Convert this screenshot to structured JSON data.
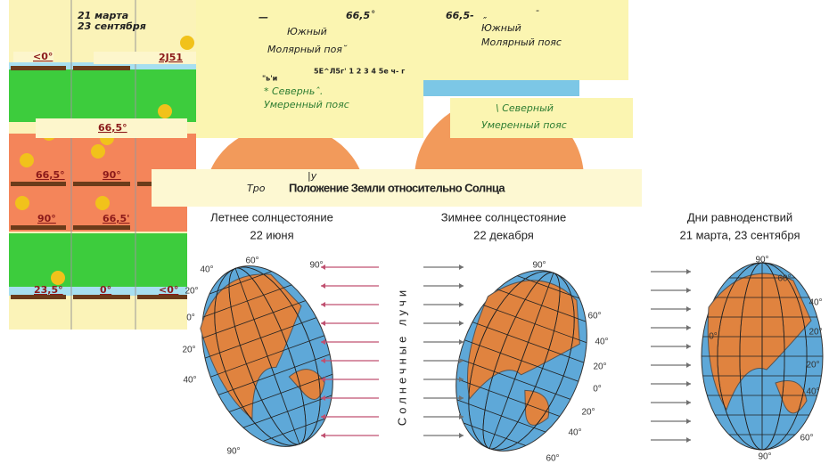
{
  "left_panel": {
    "date_line1": "21 марта",
    "date_line2": "23 сентября",
    "labels": [
      "<0°",
      "2J51",
      "66,5°",
      "66,5°",
      "90°",
      "90°",
      "66,5'",
      "23,5°",
      "0°",
      "<0°"
    ]
  },
  "box1": {
    "dash": "—",
    "angle": "66,5˚",
    "south": "Южный",
    "polar": "Молярный поя˘",
    "noise1": "5Е^Л5г' 1 2 3 4 5е ч- г",
    "noise2": "\"ь'и",
    "north": "* Северньˆ.",
    "temperate": "Умеренный пояс"
  },
  "box2": {
    "angle": "66,5-",
    "mark1": "″",
    "mark2": "-",
    "south": "Южный",
    "polar": "Молярный пояс"
  },
  "box3": {
    "north": "\\ Северный",
    "temperate": "Умеренный пояс"
  },
  "fragments": {
    "bar": "|у",
    "tropic": "Тро"
  },
  "figure": {
    "title": "Положение Земли относительно Солнца",
    "rays_label": "Солнечные лучи",
    "columns": [
      {
        "heading": "Летнее солнцестояние",
        "date": "22 июня",
        "degrees": [
          "60°",
          "90°",
          "40°",
          "20°",
          "0°",
          "20°",
          "40°",
          "90°"
        ]
      },
      {
        "heading": "Зимнее солнцестояние",
        "date": "22 декабря",
        "degrees": [
          "90°",
          "60°",
          "40°",
          "20°",
          "0°",
          "20°",
          "40°",
          "60°"
        ]
      },
      {
        "heading": "Дни равноденствий",
        "date": "21 марта, 23 сентября",
        "degrees": [
          "90°",
          "60°",
          "40°",
          "20°",
          "0°",
          "20°",
          "40°",
          "60°",
          "90°"
        ]
      }
    ]
  }
}
